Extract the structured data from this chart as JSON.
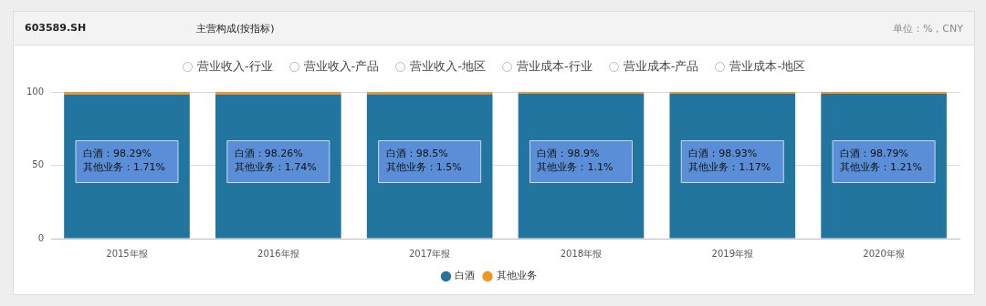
{
  "chart_data": {
    "type": "bar",
    "title": "主营构成(按指标)",
    "annotations": [
      "603589.SH",
      "单位：%，CNY",
      "营业收入-行业",
      "营业收入-产品",
      "营业收入-地区",
      "营业成本-行业",
      "营业成本-产品",
      "营业成本-地区",
      "白酒：98.29%",
      "其他业务：1.71%",
      "白酒：98.26%",
      "其他业务：1.74%",
      "白酒：98.5%",
      "其他业务：1.5%",
      "白酒：98.9%",
      "其他业务：1.1%",
      "白酒：98.93%",
      "其他业务：1.17%",
      "白酒：98.79%",
      "其他业务：1.21%"
    ],
    "categories": [
      "2015年报",
      "2016年报",
      "2017年报",
      "2018年报",
      "2019年报",
      "2020年报"
    ],
    "stacked": true,
    "series": [
      {
        "name": "白酒",
        "color": "#21759f",
        "values": [
          98.29,
          98.26,
          98.5,
          98.9,
          98.93,
          98.79
        ]
      },
      {
        "name": "其他业务",
        "color": "#f0951e",
        "values": [
          1.71,
          1.74,
          1.5,
          1.1,
          1.17,
          1.21
        ]
      }
    ],
    "ylim": [
      0,
      100
    ],
    "yticks": [
      0,
      50,
      100
    ],
    "grid": "y",
    "legend": "bottom"
  }
}
